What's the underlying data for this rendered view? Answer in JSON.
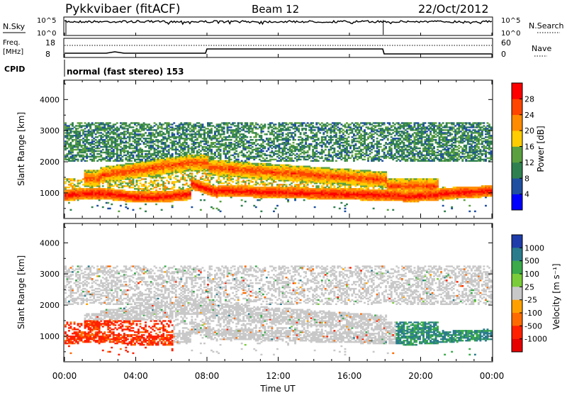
{
  "header": {
    "title": "Pykkvibaer (fitACF)",
    "beam": "Beam 12",
    "date": "22/Oct/2012"
  },
  "top_panels": {
    "nsky_label": "N.Sky",
    "nsky_ticks": [
      "10^5",
      "10^0"
    ],
    "nsearch_label": "N.Search",
    "nsearch_ticks": [
      "10^5",
      "10^0"
    ],
    "freq_label_line1": "Freq.",
    "freq_label_line2": "[MHz]",
    "freq_ticks": [
      "18",
      "8"
    ],
    "nave_label": "Nave",
    "nave_ticks": [
      "60",
      "0"
    ],
    "cpid_label": "CPID",
    "cpid_text": "normal (fast stereo) 153"
  },
  "colors": {
    "power": [
      "#0000ff",
      "#1f4fa0",
      "#2f8050",
      "#5aa040",
      "#ffcc00",
      "#ff8c00",
      "#ff4500",
      "#ff0000"
    ],
    "velocity": [
      "#1e3caa",
      "#2a7c8c",
      "#3aaa4a",
      "#7acc3a",
      "#c8c8c8",
      "#ffa000",
      "#ff6a00",
      "#ff2000",
      "#e60000"
    ]
  },
  "chart_data": [
    {
      "type": "heatmap",
      "panel": "power",
      "xlabel": "",
      "ylabel": "Slant Range [km]",
      "x_ticks": [
        "00:00",
        "04:00",
        "08:00",
        "12:00",
        "16:00",
        "20:00",
        "00:00"
      ],
      "y_ticks": [
        1000,
        2000,
        3000,
        4000
      ],
      "ylim": [
        200,
        4600
      ],
      "xlim_hours": [
        0,
        24
      ],
      "colorbar_label": "Power [dB]",
      "colorbar_ticks": [
        4,
        8,
        12,
        16,
        20,
        24,
        28
      ],
      "colorbar_range": [
        0,
        32
      ],
      "bands": [
        {
          "name": "lower strong echo",
          "time_hours": [
            0,
            24
          ],
          "range_km": [
            700,
            1200
          ],
          "power_db": 26
        },
        {
          "name": "descending band",
          "time_hours": [
            2,
            22
          ],
          "range_km": [
            900,
            2000
          ],
          "power_db": 22
        },
        {
          "name": "upper weak echo",
          "time_hours": [
            0,
            24
          ],
          "range_km": [
            2000,
            3200
          ],
          "power_db": 10
        }
      ]
    },
    {
      "type": "heatmap",
      "panel": "velocity",
      "xlabel": "Time UT",
      "ylabel": "Slant Range [km]",
      "x_ticks": [
        "00:00",
        "04:00",
        "08:00",
        "12:00",
        "16:00",
        "20:00",
        "00:00"
      ],
      "y_ticks": [
        1000,
        2000,
        3000,
        4000
      ],
      "ylim": [
        200,
        4600
      ],
      "xlim_hours": [
        0,
        24
      ],
      "colorbar_label": "Velocity [m s⁻¹]",
      "colorbar_ticks": [
        "1000",
        "500",
        "100",
        "25",
        "-25",
        "-100",
        "-500",
        "-1000"
      ],
      "bands": [
        {
          "name": "ground scatter",
          "time_hours": [
            0,
            24
          ],
          "range_km": [
            900,
            3200
          ],
          "velocity": 0
        },
        {
          "name": "negative velocity",
          "time_hours": [
            0,
            6
          ],
          "range_km": [
            700,
            1400
          ],
          "velocity": -300
        },
        {
          "name": "positive velocity",
          "time_hours": [
            18,
            24
          ],
          "range_km": [
            700,
            1400
          ],
          "velocity": 150
        }
      ]
    }
  ]
}
